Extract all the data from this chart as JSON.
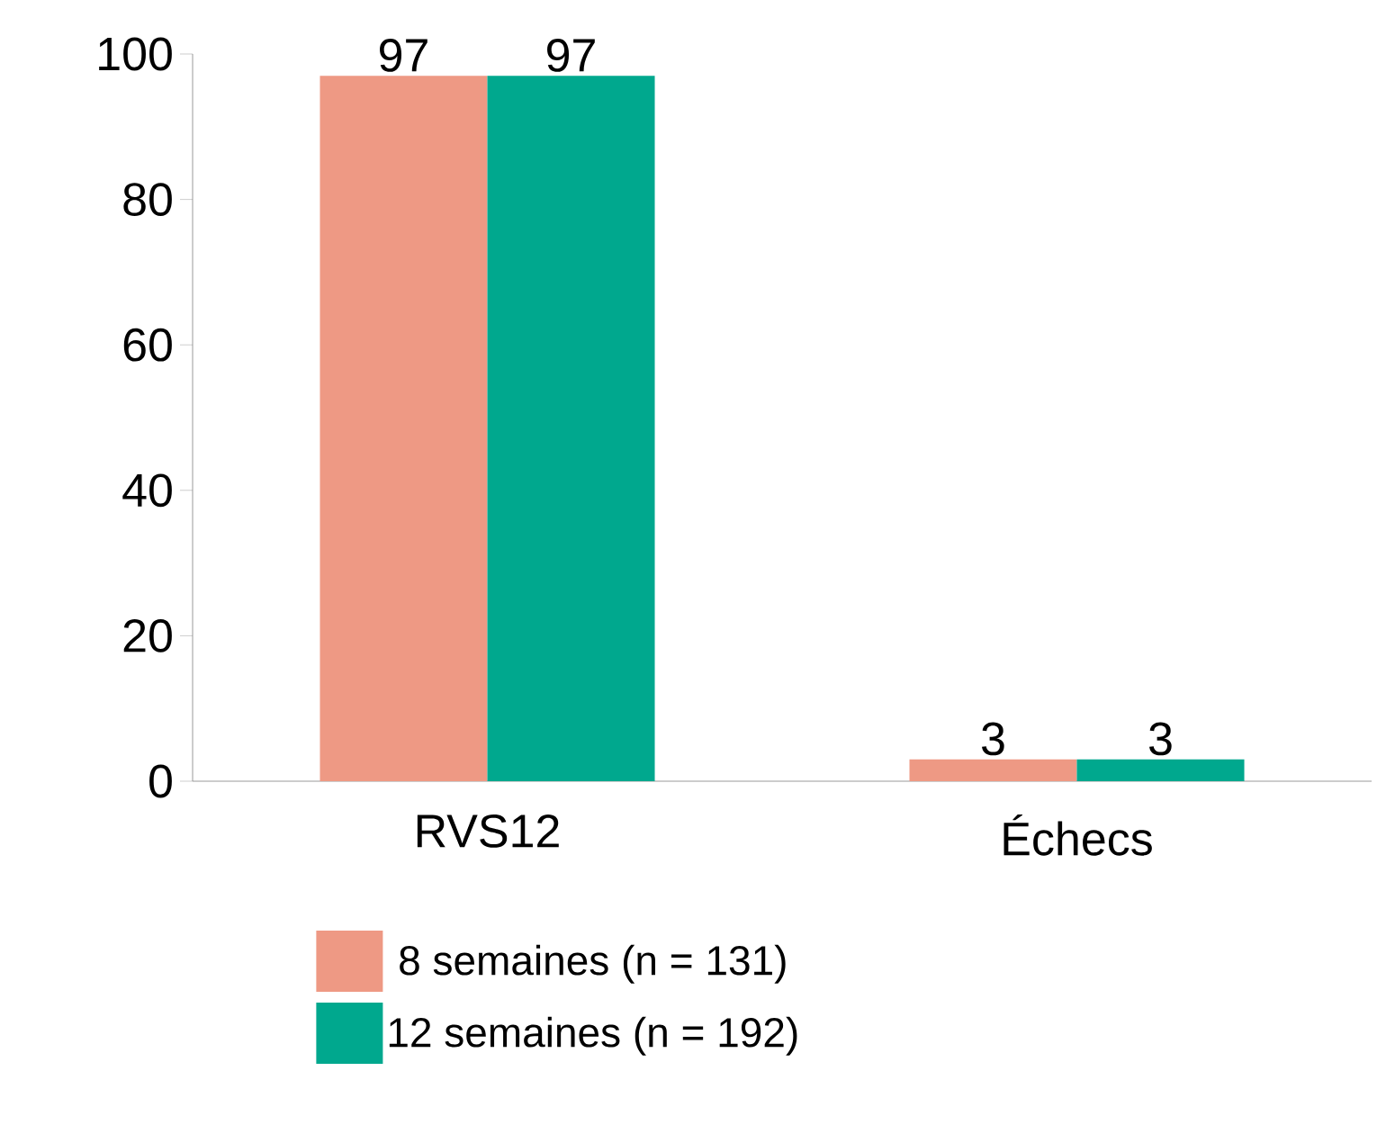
{
  "chart_data": {
    "type": "bar",
    "categories": [
      "RVS12",
      "Échecs"
    ],
    "series": [
      {
        "name": "8 semaines (n = 131)",
        "color": "#ee9984",
        "values": [
          97,
          3
        ]
      },
      {
        "name": "12 semaines (n = 192)",
        "color": "#00a88e",
        "values": [
          97,
          3
        ]
      }
    ],
    "ylim": [
      0,
      100
    ],
    "yticks": [
      0,
      20,
      40,
      60,
      80,
      100
    ],
    "grid": false,
    "legend": "bottom",
    "data_labels": true
  }
}
